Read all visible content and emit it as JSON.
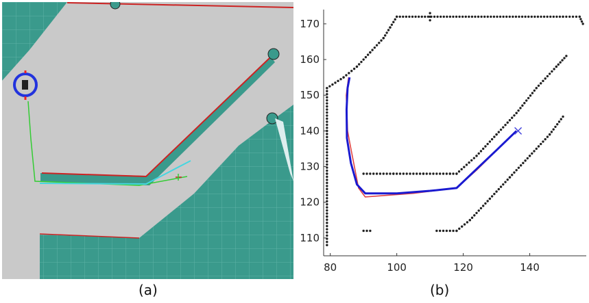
{
  "captions": {
    "a": "(a)",
    "b": "(b)"
  },
  "map_panel": {
    "floor_color": "#c9c9c9",
    "free_area_color": "#3a9a8c",
    "grid_color": "#5fb3a6",
    "robot_ring_color": "#2233dd",
    "global_path_color": "#33cc33",
    "local_path_color": "#44d6e0",
    "wall_edge_color": "#cc2222"
  },
  "chart_data": {
    "type": "scatter",
    "title": "",
    "xlabel": "",
    "ylabel": "",
    "xlim": [
      78,
      157
    ],
    "ylim": [
      105,
      174
    ],
    "xticks": [
      80,
      100,
      120,
      140
    ],
    "yticks": [
      110,
      120,
      130,
      140,
      150,
      160,
      170
    ],
    "grid": false,
    "legend": "none",
    "obstacle_color": "#222222",
    "series": [
      {
        "role": "obstacles",
        "segments": [
          {
            "x": [
              79,
              84,
              88,
              92,
              96,
              98,
              100,
              150,
              155,
              156
            ],
            "y": [
              152,
              155,
              158,
              162,
              166,
              169,
              172,
              172,
              172,
              170
            ]
          },
          {
            "x": [
              79,
              79,
              79,
              79,
              79
            ],
            "y": [
              152,
              140,
              128,
              116,
              108
            ]
          },
          {
            "x": [
              90,
              99,
              108,
              116,
              118,
              124,
              130,
              136,
              142,
              148,
              151
            ],
            "y": [
              128,
              128,
              128,
              128,
              128,
              133,
              139,
              145,
              152,
              158,
              161
            ]
          },
          {
            "x": [
              90,
              92
            ],
            "y": [
              112,
              112
            ]
          },
          {
            "x": [
              112,
              118,
              122,
              128,
              134,
              140,
              146,
              150
            ],
            "y": [
              112,
              112,
              115,
              121,
              127,
              133,
              139,
              144
            ]
          },
          {
            "x": [
              110,
              110
            ],
            "y": [
              173,
              171
            ]
          }
        ]
      },
      {
        "name": "",
        "role": "reference-path",
        "color": "#e04444",
        "x": [
          85.5,
          84.8,
          85.2,
          86.0,
          88.5,
          90.5,
          105,
          118,
          124,
          130,
          136
        ],
        "y": [
          155,
          150,
          140,
          136,
          124,
          121.5,
          122.5,
          124,
          129,
          134.5,
          140
        ]
      },
      {
        "name": "",
        "role": "tracked-path",
        "color": "#1a1ad0",
        "x": [
          85.8,
          85.2,
          84.9,
          85.0,
          86.2,
          88.0,
          90.5,
          100,
          110,
          118,
          124,
          130,
          136
        ],
        "y": [
          155,
          152,
          146,
          138,
          131,
          125,
          122.5,
          122.5,
          123.2,
          124,
          129.3,
          134.6,
          140
        ]
      },
      {
        "role": "goal-marker",
        "color": "#4444dd",
        "x": [
          136.5
        ],
        "y": [
          140
        ]
      }
    ]
  }
}
